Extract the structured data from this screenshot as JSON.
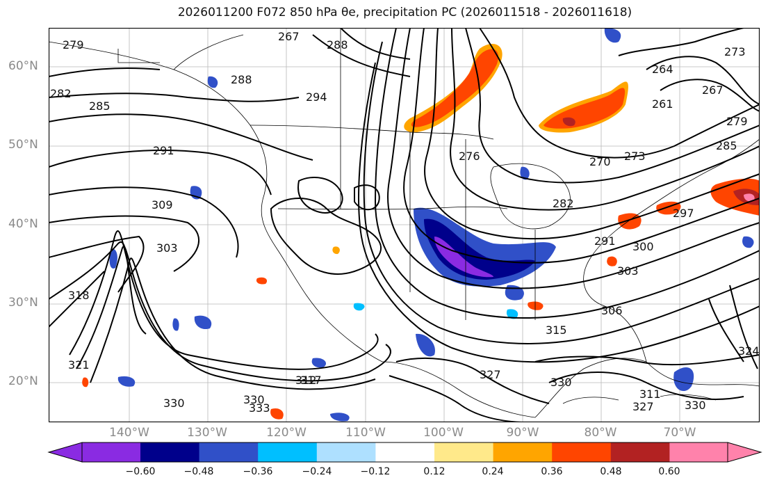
{
  "title": "2026011200 F072 850 hPa θe, precipitation PC (2026011518 - 2026011618)",
  "lat_labels": [
    {
      "text": "60°N",
      "lat": 60
    },
    {
      "text": "50°N",
      "lat": 50
    },
    {
      "text": "40°N",
      "lat": 40
    },
    {
      "text": "30°N",
      "lat": 30
    },
    {
      "text": "20°N",
      "lat": 20
    }
  ],
  "lon_labels": [
    {
      "text": "140°W",
      "lon": -140
    },
    {
      "text": "130°W",
      "lon": -130
    },
    {
      "text": "120°W",
      "lon": -120
    },
    {
      "text": "110°W",
      "lon": -110
    },
    {
      "text": "100°W",
      "lon": -100
    },
    {
      "text": "90°W",
      "lon": -90
    },
    {
      "text": "80°W",
      "lon": -80
    },
    {
      "text": "70°W",
      "lon": -70
    }
  ],
  "contour_labels": [
    "279",
    "267",
    "288",
    "285",
    "282",
    "288",
    "294",
    "291",
    "309",
    "303",
    "318",
    "321",
    "330",
    "333",
    "330",
    "317",
    "315",
    "327",
    "330",
    "327",
    "330",
    "324",
    "264",
    "261",
    "267",
    "273",
    "279",
    "285",
    "270",
    "273",
    "276",
    "282",
    "291",
    "297",
    "300",
    "303",
    "306",
    "311",
    "312"
  ],
  "colorbar": {
    "ticks": [
      "−0.60",
      "−0.48",
      "−0.36",
      "−0.24",
      "−0.12",
      "0.12",
      "0.24",
      "0.36",
      "0.48",
      "0.60"
    ],
    "colors": [
      "#8a2be2",
      "#00008b",
      "#3050c8",
      "#00bfff",
      "#aee0ff",
      "#ffffff",
      "#ffe98a",
      "#ffa500",
      "#ff4500",
      "#b22222",
      "#ff82ab"
    ]
  }
}
